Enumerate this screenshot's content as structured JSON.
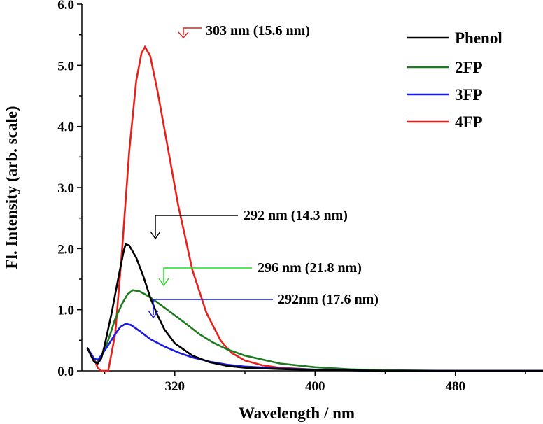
{
  "chart_data": {
    "type": "line",
    "xlabel": "Wavelength / nm",
    "ylabel": "Fl. Intensity (arb. scale)",
    "xlim": [
      267,
      530
    ],
    "ylim": [
      0,
      6.0
    ],
    "xticks": [
      320,
      400,
      480
    ],
    "xtick_labels": [
      "320",
      "400",
      "480"
    ],
    "yticks": [
      0,
      1,
      2,
      3,
      4,
      5,
      6
    ],
    "ytick_labels": [
      "0.0",
      "1.0",
      "2.0",
      "3.0",
      "4.0",
      "5.0",
      "6.0"
    ],
    "legend_position": "top-right",
    "series": [
      {
        "name": "Phenol",
        "color": "#000000",
        "x": [
          270,
          274,
          276,
          278,
          280,
          284,
          288,
          291,
          292,
          294,
          298,
          302,
          306,
          310,
          314,
          320,
          330,
          340,
          350,
          360,
          380,
          400,
          440,
          480,
          530
        ],
        "y": [
          0.38,
          0.15,
          0.12,
          0.2,
          0.42,
          0.95,
          1.55,
          1.98,
          2.07,
          2.05,
          1.85,
          1.55,
          1.2,
          0.92,
          0.68,
          0.45,
          0.25,
          0.14,
          0.08,
          0.05,
          0.03,
          0.015,
          0.0,
          0.0,
          0.0
        ]
      },
      {
        "name": "2FP",
        "color": "#1e7a1e",
        "x": [
          270,
          274,
          276,
          278,
          282,
          286,
          290,
          293,
          296,
          300,
          305,
          310,
          318,
          326,
          334,
          342,
          350,
          360,
          380,
          400,
          420,
          440,
          480,
          530
        ],
        "y": [
          0.38,
          0.15,
          0.14,
          0.22,
          0.5,
          0.85,
          1.1,
          1.25,
          1.32,
          1.3,
          1.22,
          1.12,
          0.95,
          0.78,
          0.6,
          0.46,
          0.35,
          0.25,
          0.12,
          0.06,
          0.025,
          0.01,
          0.0,
          0.0
        ]
      },
      {
        "name": "3FP",
        "color": "#1a1ae6",
        "x": [
          270,
          274,
          276,
          278,
          282,
          286,
          289,
          292,
          295,
          300,
          306,
          314,
          322,
          330,
          340,
          350,
          360,
          380,
          400,
          440,
          480,
          530
        ],
        "y": [
          0.38,
          0.2,
          0.18,
          0.25,
          0.42,
          0.6,
          0.72,
          0.77,
          0.75,
          0.65,
          0.52,
          0.4,
          0.3,
          0.22,
          0.15,
          0.1,
          0.07,
          0.04,
          0.02,
          0.0,
          0.0,
          0.0
        ]
      },
      {
        "name": "4FP",
        "color": "#e8201a",
        "x": [
          270,
          274,
          276,
          278,
          282,
          286,
          290,
          294,
          298,
          301,
          303,
          306,
          310,
          316,
          322,
          330,
          338,
          346,
          352,
          360,
          370,
          380,
          400,
          440,
          480,
          530
        ],
        "y": [
          0.38,
          0.2,
          0.05,
          0.0,
          0.0,
          0.6,
          2.0,
          3.6,
          4.75,
          5.2,
          5.3,
          5.15,
          4.6,
          3.65,
          2.7,
          1.65,
          0.95,
          0.5,
          0.3,
          0.17,
          0.09,
          0.05,
          0.02,
          0.0,
          0.0,
          0.0
        ]
      }
    ],
    "annotations": [
      {
        "text": "303 nm (15.6 nm)",
        "series": "4FP",
        "peak_x": 303,
        "peak_y": 5.3
      },
      {
        "text": "292 nm (14.3 nm)",
        "series": "Phenol",
        "peak_x": 292,
        "peak_y": 2.07
      },
      {
        "text": "296 nm (21.8 nm)",
        "series": "2FP",
        "peak_x": 296,
        "peak_y": 1.32
      },
      {
        "text": "292nm (17.6 nm)",
        "series": "3FP",
        "peak_x": 292,
        "peak_y": 0.77
      }
    ]
  }
}
